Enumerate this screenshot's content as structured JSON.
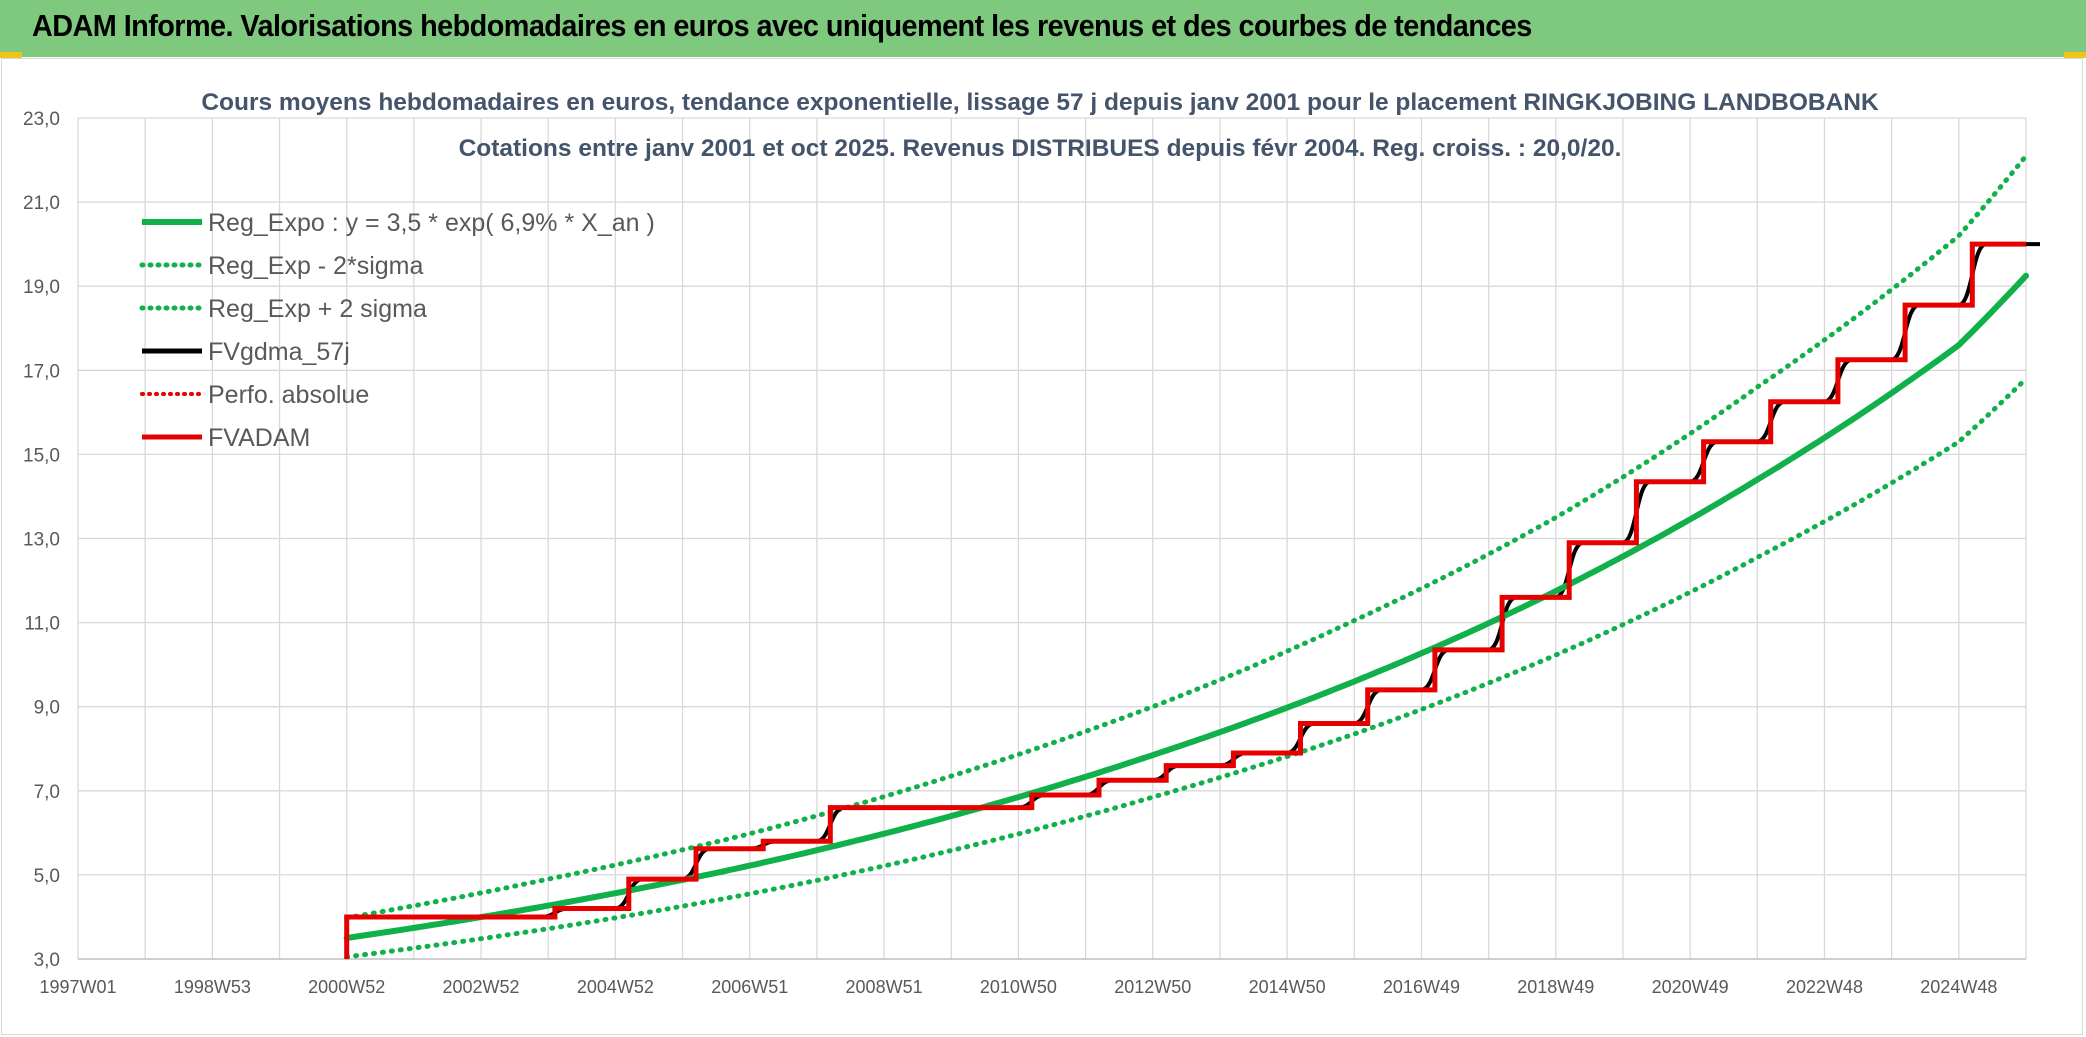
{
  "banner": {
    "title": "ADAM Informe. Valorisations hebdomadaires en euros avec uniquement les revenus et des courbes de tendances"
  },
  "colors": {
    "banner": "#7fc97f",
    "reg_expo": "#10b04a",
    "fvgdma": "#000000",
    "fvadam": "#e60000",
    "perfo": "#e60000",
    "grid": "#d9d9d9"
  },
  "chart_data": {
    "type": "line",
    "title": "Cours moyens hebdomadaires en euros, tendance exponentielle, lissage 57 j depuis janv 2001 pour le placement RINGKJOBING LANDBOBANK",
    "subtitle": "Cotations entre janv 2001 et oct 2025. Revenus DISTRIBUES depuis févr 2004. Reg. croiss. : 20,0/20.",
    "xlabel": "",
    "ylabel": "",
    "ylim": [
      3.0,
      23.0
    ],
    "yticks": [
      "3,0",
      "5,0",
      "7,0",
      "9,0",
      "11,0",
      "13,0",
      "15,0",
      "17,0",
      "19,0",
      "21,0",
      "23,0"
    ],
    "xlim": [
      1997.0,
      2026.0
    ],
    "xticks": [
      "1997W01",
      "1998W53",
      "2000W52",
      "2002W52",
      "2004W52",
      "2006W51",
      "2008W51",
      "2010W50",
      "2012W50",
      "2014W50",
      "2016W49",
      "2018W49",
      "2020W49",
      "2022W48",
      "2024W48"
    ],
    "grid": true,
    "legend_position": "top-left",
    "legend": [
      {
        "label": "Reg_Expo : y = 3,5 * exp( 6,9% *  X_an )",
        "style": "solid-green"
      },
      {
        "label": "Reg_Exp - 2*sigma",
        "style": "dotted-green"
      },
      {
        "label": "Reg_Exp + 2 sigma",
        "style": "dotted-green"
      },
      {
        "label": "FVgdma_57j",
        "style": "solid-black"
      },
      {
        "label": "Perfo. absolue",
        "style": "dotted-red"
      },
      {
        "label": "FVADAM",
        "style": "solid-red"
      }
    ],
    "series": [
      {
        "name": "Reg_Expo : y = 3,5 * exp( 6,9% *  X_an )",
        "kind": "line",
        "x": [
          2001.0,
          2004.0,
          2007.0,
          2010.0,
          2013.0,
          2016.0,
          2019.0,
          2022.0,
          2025.0,
          2026.0
        ],
        "y": [
          3.5,
          4.27,
          5.22,
          6.4,
          7.85,
          9.6,
          11.75,
          14.4,
          17.6,
          19.25
        ]
      },
      {
        "name": "Reg_Exp - 2*sigma",
        "kind": "line",
        "x": [
          2001.0,
          2004.0,
          2007.0,
          2010.0,
          2013.0,
          2016.0,
          2019.0,
          2022.0,
          2025.0,
          2026.0
        ],
        "y": [
          3.05,
          3.72,
          4.55,
          5.58,
          6.85,
          8.35,
          10.23,
          12.55,
          15.3,
          16.8
        ]
      },
      {
        "name": "Reg_Exp + 2 sigma",
        "kind": "line",
        "x": [
          2001.0,
          2004.0,
          2007.0,
          2010.0,
          2013.0,
          2016.0,
          2019.0,
          2022.0,
          2025.0,
          2026.0
        ],
        "y": [
          3.98,
          4.9,
          5.98,
          7.35,
          9.0,
          11.05,
          13.5,
          16.6,
          20.2,
          22.1
        ]
      },
      {
        "name": "FVADAM",
        "kind": "step",
        "x": [
          2001.0,
          2004.1,
          2005.2,
          2006.2,
          2007.2,
          2008.2,
          2011.2,
          2012.2,
          2013.2,
          2014.2,
          2015.2,
          2016.2,
          2017.2,
          2018.2,
          2019.2,
          2020.2,
          2021.2,
          2022.2,
          2023.2,
          2024.2,
          2025.2,
          2026.0
        ],
        "y": [
          4.0,
          4.2,
          4.9,
          5.62,
          5.8,
          6.6,
          6.9,
          7.25,
          7.6,
          7.9,
          8.6,
          9.4,
          10.35,
          11.6,
          12.9,
          14.35,
          15.3,
          16.25,
          17.25,
          18.55,
          20.0,
          20.0
        ]
      }
    ]
  }
}
